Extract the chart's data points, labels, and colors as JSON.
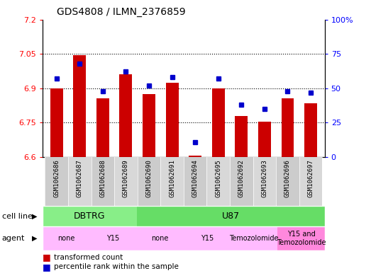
{
  "title": "GDS4808 / ILMN_2376859",
  "samples": [
    "GSM1062686",
    "GSM1062687",
    "GSM1062688",
    "GSM1062689",
    "GSM1062690",
    "GSM1062691",
    "GSM1062694",
    "GSM1062695",
    "GSM1062692",
    "GSM1062693",
    "GSM1062696",
    "GSM1062697"
  ],
  "bar_values": [
    6.9,
    7.045,
    6.855,
    6.96,
    6.875,
    6.925,
    6.605,
    6.9,
    6.78,
    6.755,
    6.855,
    6.835
  ],
  "dot_values": [
    57,
    68,
    48,
    62,
    52,
    58,
    11,
    57,
    38,
    35,
    48,
    47
  ],
  "ylim_left": [
    6.6,
    7.2
  ],
  "ylim_right": [
    0,
    100
  ],
  "yticks_left": [
    6.6,
    6.75,
    6.9,
    7.05,
    7.2
  ],
  "yticks_right": [
    0,
    25,
    50,
    75,
    100
  ],
  "ytick_labels_left": [
    "6.6",
    "6.75",
    "6.9",
    "7.05",
    "7.2"
  ],
  "ytick_labels_right": [
    "0",
    "25",
    "50",
    "75",
    "100%"
  ],
  "hlines": [
    6.75,
    6.9,
    7.05
  ],
  "bar_color": "#cc0000",
  "dot_color": "#0000cc",
  "bar_baseline": 6.6,
  "cell_line_groups": [
    {
      "label": "DBTRG",
      "start": 0,
      "end": 3,
      "color": "#88ee88"
    },
    {
      "label": "U87",
      "start": 4,
      "end": 11,
      "color": "#66dd66"
    }
  ],
  "agent_spans": [
    {
      "label": "none",
      "start": 0,
      "end": 1,
      "color": "#ffbbff"
    },
    {
      "label": "Y15",
      "start": 2,
      "end": 3,
      "color": "#ffbbff"
    },
    {
      "label": "none",
      "start": 4,
      "end": 5,
      "color": "#ffbbff"
    },
    {
      "label": "Y15",
      "start": 6,
      "end": 7,
      "color": "#ffbbff"
    },
    {
      "label": "Temozolomide",
      "start": 8,
      "end": 9,
      "color": "#ffbbff"
    },
    {
      "label": "Y15 and\nTemozolomide",
      "start": 10,
      "end": 11,
      "color": "#ff88dd"
    }
  ],
  "legend_bar_label": "transformed count",
  "legend_dot_label": "percentile rank within the sample",
  "cell_line_label": "cell line",
  "agent_label": "agent",
  "background_color": "#ffffff",
  "plot_bg_color": "#ffffff",
  "xlabel_bg": "#d0d0d0"
}
